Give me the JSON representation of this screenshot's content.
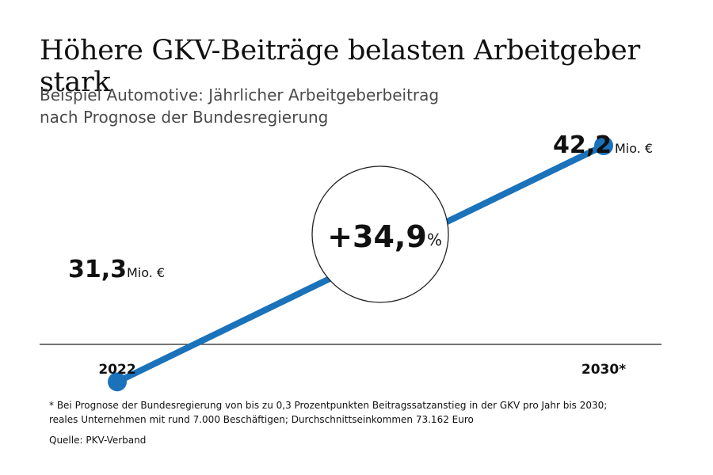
{
  "title": "Höhere GKV-Beiträge belasten Arbeitgeber stark",
  "subtitle_lines": [
    "Beispiel Automotive: Jährlicher Arbeitgeberbeitrag",
    "nach Prognose der Bundesregierung"
  ],
  "colors": {
    "line": "#1a72bb",
    "axis": "#222222",
    "text": "#111111",
    "subtitle": "#4a4a4a"
  },
  "chart_data": {
    "type": "line",
    "x": [
      "2022",
      "2030*"
    ],
    "series": [
      {
        "values": [
          31.3,
          42.2
        ]
      }
    ],
    "value_labels": [
      "31,3",
      "42,2"
    ],
    "unit_label": "Mio. €",
    "change_label": "+34,9",
    "change_unit": "%",
    "ylim": [
      27,
      46
    ],
    "grid": false
  },
  "footnote_lines": [
    "* Bei Prognose der Bundesregierung von bis zu 0,3 Prozentpunkten Beitragssatzanstieg in der GKV pro Jahr bis 2030;",
    "reales Unternehmen mit rund 7.000 Beschäftigen; Durchschnittseinkommen 73.162 Euro"
  ],
  "source": "Quelle: PKV-Verband"
}
